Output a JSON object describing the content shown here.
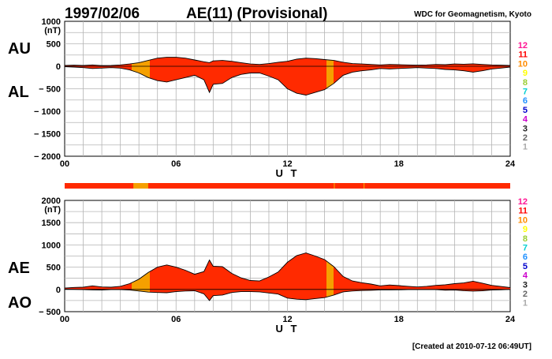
{
  "header": {
    "date": "1997/02/06",
    "title": "AE(11) (Provisional)",
    "source": "WDC for Geomagnetism, Kyoto"
  },
  "footer": {
    "created": "[Created at 2010-07-12 06:49UT]"
  },
  "colors": {
    "fill_main": "#ff2a00",
    "fill_secondary": "#f5a000",
    "stations_bar_main": "#ff2a00",
    "stations_bar_secondary": "#f5a000",
    "grid": "#b4b4b4",
    "line": "#000000"
  },
  "station_legend": {
    "labels": [
      "12",
      "11",
      "10",
      "9",
      "8",
      "7",
      "6",
      "5",
      "4",
      "3",
      "2",
      "1"
    ],
    "colors": [
      "#ff1493",
      "#ff0000",
      "#ff8c00",
      "#ffff00",
      "#9acd32",
      "#00ced1",
      "#1e90ff",
      "#0000cd",
      "#cc00cc",
      "#222222",
      "#666666",
      "#aaaaaa"
    ]
  },
  "chart_data": [
    {
      "type": "area",
      "panel": "AU/AL",
      "left_labels": {
        "upper": "AU",
        "lower": "AL"
      },
      "ylabel": "(nT)",
      "xlabel": "U T",
      "x_ticks": [
        "00",
        "06",
        "12",
        "18",
        "24"
      ],
      "x_range": [
        0,
        24
      ],
      "ylim": [
        -2000,
        1000
      ],
      "y_ticks": [
        1000,
        500,
        0,
        -500,
        -1000,
        -1500,
        -2000
      ],
      "y_tick_labels": [
        "1000",
        "500",
        "0",
        "− 500",
        "− 1000",
        "− 1500",
        "− 2000"
      ],
      "grid": true,
      "x_ut_hours": [
        0,
        0.5,
        1,
        1.5,
        2,
        2.5,
        3,
        3.5,
        4,
        4.5,
        5,
        5.5,
        6,
        6.5,
        7,
        7.5,
        7.8,
        8,
        8.5,
        9,
        9.5,
        10,
        10.5,
        11,
        11.5,
        12,
        12.5,
        13,
        13.5,
        14,
        14.5,
        15,
        15.5,
        16,
        16.5,
        17,
        17.5,
        18,
        18.5,
        19,
        19.5,
        20,
        20.5,
        21,
        21.5,
        22,
        22.5,
        23,
        23.5,
        24
      ],
      "series": [
        {
          "name": "AU",
          "values": [
            20,
            25,
            20,
            30,
            15,
            20,
            30,
            50,
            80,
            130,
            180,
            200,
            200,
            180,
            140,
            100,
            80,
            120,
            130,
            110,
            80,
            50,
            40,
            60,
            90,
            110,
            160,
            180,
            170,
            150,
            130,
            90,
            60,
            50,
            40,
            30,
            40,
            35,
            30,
            25,
            30,
            40,
            35,
            50,
            45,
            55,
            40,
            30,
            25,
            20
          ]
        },
        {
          "name": "AL",
          "values": [
            -10,
            -20,
            -30,
            -50,
            -40,
            -30,
            -40,
            -80,
            -150,
            -250,
            -320,
            -350,
            -300,
            -250,
            -200,
            -300,
            -580,
            -400,
            -380,
            -250,
            -180,
            -150,
            -150,
            -220,
            -300,
            -500,
            -600,
            -640,
            -580,
            -520,
            -380,
            -200,
            -130,
            -100,
            -80,
            -50,
            -60,
            -50,
            -40,
            -30,
            -40,
            -50,
            -70,
            -80,
            -100,
            -130,
            -100,
            -60,
            -40,
            -20
          ]
        }
      ],
      "secondary_color_ranges_ut": [
        [
          3.6,
          4.6
        ],
        [
          14.1,
          14.5
        ]
      ]
    },
    {
      "type": "area",
      "panel": "AE/AO",
      "left_labels": {
        "upper": "AE",
        "lower": "AO"
      },
      "ylabel": "(nT)",
      "xlabel": "U T",
      "x_ticks": [
        "00",
        "06",
        "12",
        "18",
        "24"
      ],
      "x_range": [
        0,
        24
      ],
      "ylim": [
        -500,
        2000
      ],
      "y_ticks": [
        2000,
        1500,
        1000,
        500,
        0,
        -500
      ],
      "y_tick_labels": [
        "2000",
        "1500",
        "1000",
        "500",
        "0",
        "− 500"
      ],
      "grid": true,
      "x_ut_hours": [
        0,
        0.5,
        1,
        1.5,
        2,
        2.5,
        3,
        3.5,
        4,
        4.5,
        5,
        5.5,
        6,
        6.5,
        7,
        7.5,
        7.8,
        8,
        8.5,
        9,
        9.5,
        10,
        10.5,
        11,
        11.5,
        12,
        12.5,
        13,
        13.5,
        14,
        14.5,
        15,
        15.5,
        16,
        16.5,
        17,
        17.5,
        18,
        18.5,
        19,
        19.5,
        20,
        20.5,
        21,
        21.5,
        22,
        22.5,
        23,
        23.5,
        24
      ],
      "series": [
        {
          "name": "AE",
          "values": [
            30,
            45,
            50,
            80,
            55,
            50,
            70,
            130,
            230,
            380,
            500,
            550,
            500,
            430,
            340,
            400,
            660,
            520,
            510,
            360,
            260,
            200,
            190,
            280,
            390,
            610,
            760,
            820,
            750,
            670,
            510,
            290,
            190,
            150,
            120,
            80,
            100,
            85,
            70,
            55,
            70,
            90,
            105,
            130,
            145,
            185,
            140,
            90,
            65,
            40
          ]
        },
        {
          "name": "AO",
          "values": [
            5,
            2,
            -5,
            -10,
            -12,
            -5,
            -5,
            -15,
            -35,
            -60,
            -70,
            -75,
            -50,
            -35,
            -30,
            -100,
            -250,
            -140,
            -125,
            -70,
            -50,
            -50,
            -55,
            -80,
            -105,
            -195,
            -220,
            -230,
            -205,
            -185,
            -125,
            -55,
            -35,
            -25,
            -20,
            -10,
            -10,
            -8,
            -5,
            -3,
            -5,
            -5,
            -18,
            -15,
            -28,
            -38,
            -30,
            -15,
            -8,
            0
          ]
        }
      ],
      "secondary_color_ranges_ut": [
        [
          3.6,
          4.6
        ],
        [
          14.1,
          14.5
        ]
      ]
    }
  ],
  "stations_bar": {
    "secondary_ranges_ut": [
      [
        3.7,
        4.5
      ],
      [
        14.5,
        14.55
      ],
      [
        16.1,
        16.15
      ]
    ]
  }
}
